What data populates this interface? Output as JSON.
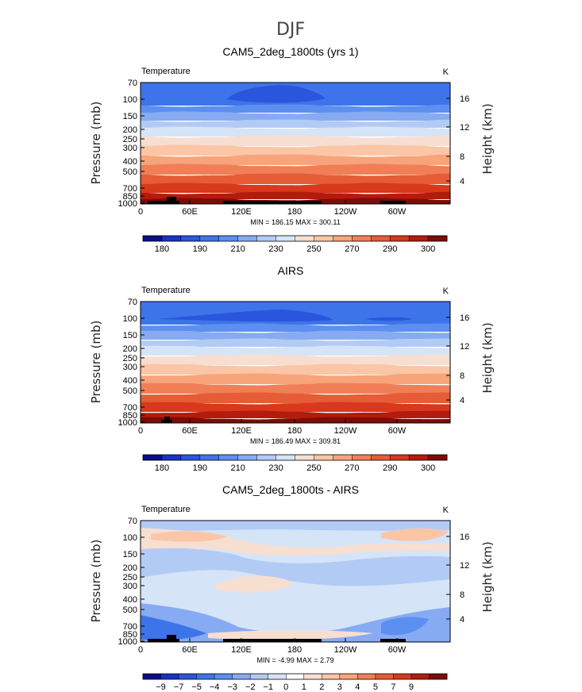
{
  "figure_title": "DJF",
  "colors": {
    "temperature_scale": [
      "#0b0e8a",
      "#1833c4",
      "#2a55dd",
      "#3e74ea",
      "#5c8ff0",
      "#86abf3",
      "#b2cbf5",
      "#d6e4f8",
      "#f6ded1",
      "#fbc6a6",
      "#f8a47a",
      "#f07f58",
      "#e55c36",
      "#d8381b",
      "#b41b0c",
      "#7d0c07"
    ],
    "difference_scale": [
      "#0b0e8a",
      "#1833c4",
      "#2a55dd",
      "#3e74ea",
      "#5c8ff0",
      "#86abf3",
      "#b2cbf5",
      "#d6e4f8",
      "#ffffff",
      "#f6ded1",
      "#fbc6a6",
      "#f8a47a",
      "#f07f58",
      "#e55c36",
      "#d8381b",
      "#b41b0c",
      "#7d0c07"
    ]
  },
  "chart_data": [
    {
      "type": "contour",
      "title": "CAM5_2deg_1800ts (yrs 1)",
      "variable": "Temperature",
      "units": "K",
      "ylabel": "Pressure (mb)",
      "ylabel_right": "Height (km)",
      "x_ticks": [
        "0",
        "60E",
        "120E",
        "180",
        "120W",
        "60W"
      ],
      "y_ticks": [
        "70",
        "100",
        "150",
        "200",
        "250",
        "300",
        "400",
        "500",
        "700",
        "850",
        "1000"
      ],
      "y_ticks_right": [
        "16",
        "12",
        "8",
        "4"
      ],
      "min_max": "MIN = 186.15   MAX = 300.11",
      "colorbar_labels": [
        "180",
        "190",
        "210",
        "230",
        "250",
        "270",
        "290",
        "300"
      ]
    },
    {
      "type": "contour",
      "title": "AIRS",
      "variable": "Temperature",
      "units": "K",
      "ylabel": "Pressure (mb)",
      "ylabel_right": "Height (km)",
      "x_ticks": [
        "0",
        "60E",
        "120E",
        "180",
        "120W",
        "60W"
      ],
      "y_ticks": [
        "70",
        "100",
        "150",
        "200",
        "250",
        "300",
        "400",
        "500",
        "700",
        "850",
        "1000"
      ],
      "y_ticks_right": [
        "16",
        "12",
        "8",
        "4"
      ],
      "min_max": "MIN = 186.49   MAX = 309.81",
      "colorbar_labels": [
        "180",
        "190",
        "210",
        "230",
        "250",
        "270",
        "290",
        "300"
      ]
    },
    {
      "type": "contour",
      "title": "CAM5_2deg_1800ts - AIRS",
      "variable": "Temperature",
      "units": "K",
      "ylabel": "Pressure (mb)",
      "ylabel_right": "Height (km)",
      "x_ticks": [
        "0",
        "60E",
        "120E",
        "180",
        "120W",
        "60W"
      ],
      "y_ticks": [
        "70",
        "100",
        "150",
        "200",
        "250",
        "300",
        "400",
        "500",
        "700",
        "850",
        "1000"
      ],
      "y_ticks_right": [
        "16",
        "12",
        "8",
        "4"
      ],
      "min_max": "MIN =   -4.99   MAX =    2.79",
      "colorbar_labels": [
        "-9",
        "-7",
        "-5",
        "-4",
        "-3",
        "-2",
        "-1",
        "0",
        "1",
        "2",
        "3",
        "4",
        "5",
        "7",
        "9"
      ]
    }
  ]
}
